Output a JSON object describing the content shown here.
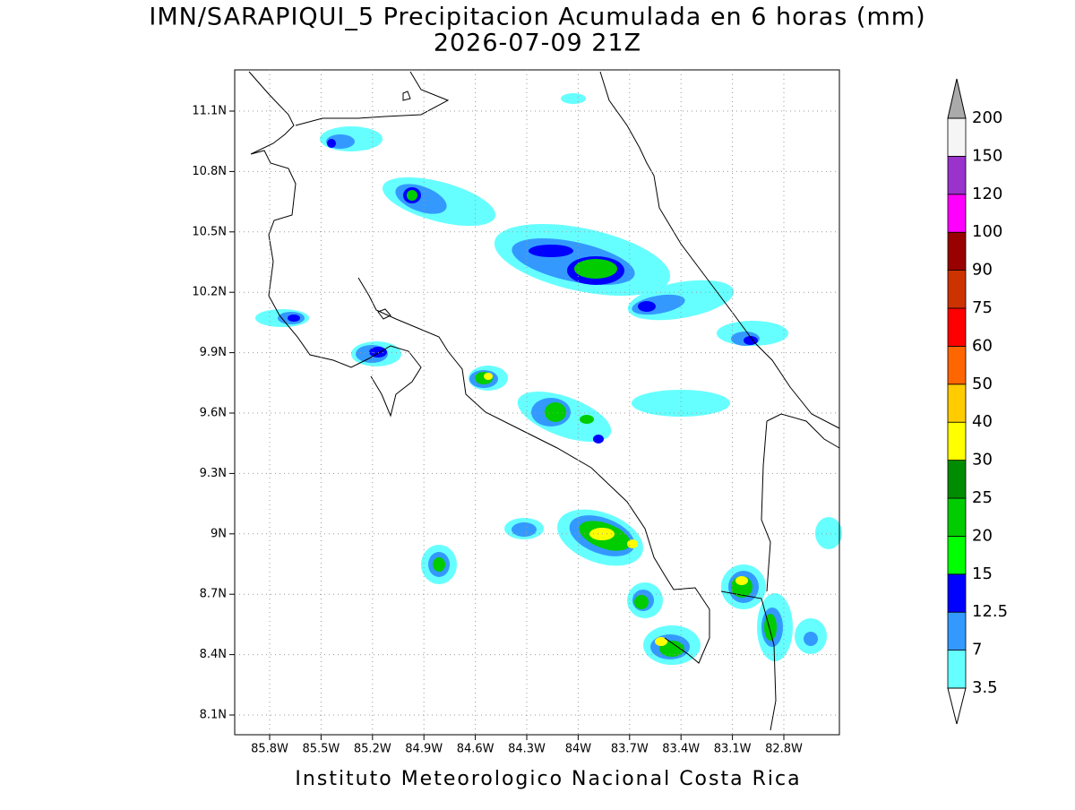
{
  "title": "IMN/SARAPIQUI_5 Precipitacion Acumulada en 6 horas (mm)",
  "subtitle": "2026-07-09 21Z",
  "footer": "Instituto Meteorologico Nacional Costa Rica",
  "map": {
    "lon_ticks": [
      {
        "value": -85.8,
        "label": "85.8W"
      },
      {
        "value": -85.5,
        "label": "85.5W"
      },
      {
        "value": -85.2,
        "label": "85.2W"
      },
      {
        "value": -84.9,
        "label": "84.9W"
      },
      {
        "value": -84.6,
        "label": "84.6W"
      },
      {
        "value": -84.3,
        "label": "84.3W"
      },
      {
        "value": -84,
        "label": "84W"
      },
      {
        "value": -83.7,
        "label": "83.7W"
      },
      {
        "value": -83.4,
        "label": "83.4W"
      },
      {
        "value": -83.1,
        "label": "83.1W"
      },
      {
        "value": -82.8,
        "label": "82.8W"
      }
    ],
    "lat_ticks": [
      {
        "value": 11.1,
        "label": "11.1N"
      },
      {
        "value": 10.8,
        "label": "10.8N"
      },
      {
        "value": 10.5,
        "label": "10.5N"
      },
      {
        "value": 10.2,
        "label": "10.2N"
      },
      {
        "value": 9.9,
        "label": "9.9N"
      },
      {
        "value": 9.6,
        "label": "9.6N"
      },
      {
        "value": 9.3,
        "label": "9.3N"
      },
      {
        "value": 9,
        "label": "9N"
      },
      {
        "value": 8.7,
        "label": "8.7N"
      },
      {
        "value": 8.4,
        "label": "8.4N"
      },
      {
        "value": 8.1,
        "label": "8.1N"
      }
    ],
    "grid": true
  },
  "colorbar": {
    "levels": [
      3.5,
      7,
      12.5,
      15,
      20,
      25,
      30,
      40,
      50,
      60,
      75,
      90,
      100,
      120,
      150,
      200
    ],
    "colors": [
      "#66ffff",
      "#3399ff",
      "#0000ff",
      "#00ff00",
      "#00cc00",
      "#008c00",
      "#ffff00",
      "#ffcc00",
      "#ff6600",
      "#ff0000",
      "#cc3300",
      "#990000",
      "#ff00ff",
      "#9933cc",
      "#f5f5f5"
    ],
    "under_color": "#ffffff",
    "over_color": "#aaaaaa"
  }
}
